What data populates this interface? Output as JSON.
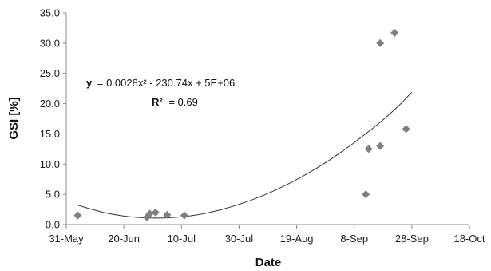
{
  "chart_data": {
    "type": "scatter",
    "title": "",
    "xlabel": "Date",
    "ylabel": "GSI [%]",
    "x_tick_labels": [
      "31-May",
      "20-Jun",
      "10-Jul",
      "30-Jul",
      "19-Aug",
      "8-Sep",
      "28-Sep",
      "18-Oct"
    ],
    "x_ticks": [
      "2011-05-31",
      "2011-06-20",
      "2011-07-10",
      "2011-07-30",
      "2011-08-19",
      "2011-09-08",
      "2011-09-28",
      "2011-10-18"
    ],
    "y_tick_labels": [
      "0.0",
      "5.0",
      "10.0",
      "15.0",
      "20.0",
      "25.0",
      "30.0",
      "35.0"
    ],
    "xlim": [
      "2011-05-31",
      "2011-10-18"
    ],
    "ylim": [
      0,
      35
    ],
    "grid": false,
    "legend": "none",
    "marker_color": "#7f7f7f",
    "trendline_color": "#333333",
    "trendline": {
      "type": "polynomial",
      "order": 2,
      "equation_text": "= 0.0028x² - 230.74x + 5E+06",
      "equation_var": "y",
      "r2_text": "= 0.69",
      "r2_var": "R²",
      "points": [
        {
          "x": "2011-06-04",
          "y": 3.2
        },
        {
          "x": "2011-06-14",
          "y": 1.9
        },
        {
          "x": "2011-06-24",
          "y": 1.2
        },
        {
          "x": "2011-07-04",
          "y": 1.1
        },
        {
          "x": "2011-07-14",
          "y": 1.5
        },
        {
          "x": "2011-07-24",
          "y": 2.5
        },
        {
          "x": "2011-08-03",
          "y": 4.0
        },
        {
          "x": "2011-08-13",
          "y": 6.0
        },
        {
          "x": "2011-08-23",
          "y": 8.5
        },
        {
          "x": "2011-09-02",
          "y": 11.5
        },
        {
          "x": "2011-09-12",
          "y": 15.0
        },
        {
          "x": "2011-09-22",
          "y": 19.0
        },
        {
          "x": "2011-09-28",
          "y": 21.9
        }
      ]
    },
    "series": [
      {
        "points": [
          {
            "x": "2011-06-04",
            "y": 1.5
          },
          {
            "x": "2011-06-28",
            "y": 1.2
          },
          {
            "x": "2011-06-29",
            "y": 1.8
          },
          {
            "x": "2011-07-01",
            "y": 2.0
          },
          {
            "x": "2011-07-05",
            "y": 1.6
          },
          {
            "x": "2011-07-11",
            "y": 1.5
          },
          {
            "x": "2011-09-12",
            "y": 5.0
          },
          {
            "x": "2011-09-13",
            "y": 12.5
          },
          {
            "x": "2011-09-17",
            "y": 13.0
          },
          {
            "x": "2011-09-17",
            "y": 30.0
          },
          {
            "x": "2011-09-22",
            "y": 31.7
          },
          {
            "x": "2011-09-26",
            "y": 15.8
          }
        ]
      }
    ]
  }
}
